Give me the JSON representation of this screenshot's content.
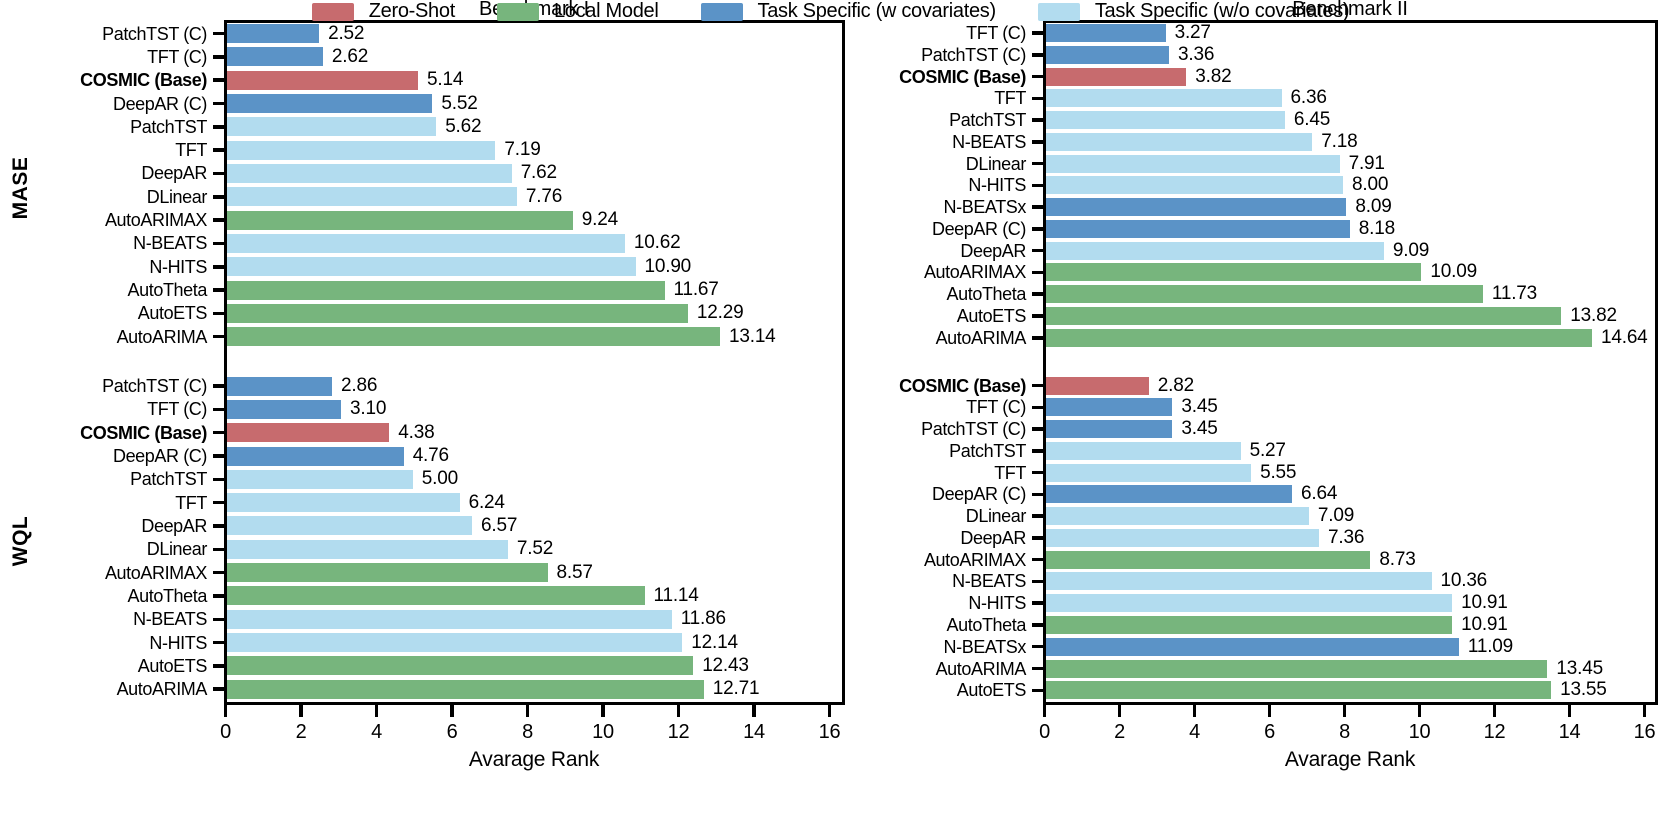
{
  "figure": {
    "xlabel": "Avarage Rank",
    "x_ticks": [
      0,
      2,
      4,
      6,
      8,
      10,
      12,
      14,
      16
    ],
    "row_labels": [
      "MASE",
      "WQL"
    ],
    "colors": {
      "zero_shot": "#C76B6E",
      "local_model": "#77B57D",
      "task_specific_cov": "#5B93C7",
      "task_specific_nocov": "#B2DCEF",
      "axis": "#000000"
    },
    "legend": [
      {
        "label": "Zero-Shot",
        "color_key": "zero_shot"
      },
      {
        "label": "Local Model",
        "color_key": "local_model"
      },
      {
        "label": "Task Specific (w covariates)",
        "color_key": "task_specific_cov"
      },
      {
        "label": "Task Specific (w/o covariates)",
        "color_key": "task_specific_nocov"
      }
    ]
  },
  "chart_data": [
    {
      "type": "bar",
      "orientation": "horizontal",
      "title": "Benchmark I",
      "xlabel": "Avarage Rank",
      "xlim": [
        0,
        16.45
      ],
      "value_format": "2dp",
      "groups": [
        {
          "metric": "MASE",
          "bars": [
            {
              "label": "PatchTST (C)",
              "value": 2.52,
              "category": "task_specific_cov",
              "bold": false
            },
            {
              "label": "TFT (C)",
              "value": 2.62,
              "category": "task_specific_cov",
              "bold": false
            },
            {
              "label": "COSMIC (Base)",
              "value": 5.14,
              "category": "zero_shot",
              "bold": true
            },
            {
              "label": "DeepAR (C)",
              "value": 5.52,
              "category": "task_specific_cov",
              "bold": false
            },
            {
              "label": "PatchTST",
              "value": 5.62,
              "category": "task_specific_nocov",
              "bold": false
            },
            {
              "label": "TFT",
              "value": 7.19,
              "category": "task_specific_nocov",
              "bold": false
            },
            {
              "label": "DeepAR",
              "value": 7.62,
              "category": "task_specific_nocov",
              "bold": false
            },
            {
              "label": "DLinear",
              "value": 7.76,
              "category": "task_specific_nocov",
              "bold": false
            },
            {
              "label": "AutoARIMAX",
              "value": 9.24,
              "category": "local_model",
              "bold": false
            },
            {
              "label": "N-BEATS",
              "value": 10.62,
              "category": "task_specific_nocov",
              "bold": false
            },
            {
              "label": "N-HITS",
              "value": 10.9,
              "category": "task_specific_nocov",
              "bold": false
            },
            {
              "label": "AutoTheta",
              "value": 11.67,
              "category": "local_model",
              "bold": false
            },
            {
              "label": "AutoETS",
              "value": 12.29,
              "category": "local_model",
              "bold": false
            },
            {
              "label": "AutoARIMA",
              "value": 13.14,
              "category": "local_model",
              "bold": false
            }
          ]
        },
        {
          "metric": "WQL",
          "bars": [
            {
              "label": "PatchTST (C)",
              "value": 2.86,
              "category": "task_specific_cov",
              "bold": false
            },
            {
              "label": "TFT (C)",
              "value": 3.1,
              "category": "task_specific_cov",
              "bold": false
            },
            {
              "label": "COSMIC (Base)",
              "value": 4.38,
              "category": "zero_shot",
              "bold": true
            },
            {
              "label": "DeepAR (C)",
              "value": 4.76,
              "category": "task_specific_cov",
              "bold": false
            },
            {
              "label": "PatchTST",
              "value": 5.0,
              "category": "task_specific_nocov",
              "bold": false
            },
            {
              "label": "TFT",
              "value": 6.24,
              "category": "task_specific_nocov",
              "bold": false
            },
            {
              "label": "DeepAR",
              "value": 6.57,
              "category": "task_specific_nocov",
              "bold": false
            },
            {
              "label": "DLinear",
              "value": 7.52,
              "category": "task_specific_nocov",
              "bold": false
            },
            {
              "label": "AutoARIMAX",
              "value": 8.57,
              "category": "local_model",
              "bold": false
            },
            {
              "label": "AutoTheta",
              "value": 11.14,
              "category": "local_model",
              "bold": false
            },
            {
              "label": "N-BEATS",
              "value": 11.86,
              "category": "task_specific_nocov",
              "bold": false
            },
            {
              "label": "N-HITS",
              "value": 12.14,
              "category": "task_specific_nocov",
              "bold": false
            },
            {
              "label": "AutoETS",
              "value": 12.43,
              "category": "local_model",
              "bold": false
            },
            {
              "label": "AutoARIMA",
              "value": 12.71,
              "category": "local_model",
              "bold": false
            }
          ]
        }
      ]
    },
    {
      "type": "bar",
      "orientation": "horizontal",
      "title": "Benchmark II",
      "xlabel": "Avarage Rank",
      "xlim": [
        0,
        16.45
      ],
      "value_format": "2dp",
      "groups": [
        {
          "metric": "MASE",
          "bars": [
            {
              "label": "TFT (C)",
              "value": 3.27,
              "category": "task_specific_cov",
              "bold": false
            },
            {
              "label": "PatchTST (C)",
              "value": 3.36,
              "category": "task_specific_cov",
              "bold": false
            },
            {
              "label": "COSMIC (Base)",
              "value": 3.82,
              "category": "zero_shot",
              "bold": true
            },
            {
              "label": "TFT",
              "value": 6.36,
              "category": "task_specific_nocov",
              "bold": false
            },
            {
              "label": "PatchTST",
              "value": 6.45,
              "category": "task_specific_nocov",
              "bold": false
            },
            {
              "label": "N-BEATS",
              "value": 7.18,
              "category": "task_specific_nocov",
              "bold": false
            },
            {
              "label": "DLinear",
              "value": 7.91,
              "category": "task_specific_nocov",
              "bold": false
            },
            {
              "label": "N-HITS",
              "value": 8.0,
              "category": "task_specific_nocov",
              "bold": false
            },
            {
              "label": "N-BEATSx",
              "value": 8.09,
              "category": "task_specific_cov",
              "bold": false
            },
            {
              "label": "DeepAR (C)",
              "value": 8.18,
              "category": "task_specific_cov",
              "bold": false
            },
            {
              "label": "DeepAR",
              "value": 9.09,
              "category": "task_specific_nocov",
              "bold": false
            },
            {
              "label": "AutoARIMAX",
              "value": 10.09,
              "category": "local_model",
              "bold": false
            },
            {
              "label": "AutoTheta",
              "value": 11.73,
              "category": "local_model",
              "bold": false
            },
            {
              "label": "AutoETS",
              "value": 13.82,
              "category": "local_model",
              "bold": false
            },
            {
              "label": "AutoARIMA",
              "value": 14.64,
              "category": "local_model",
              "bold": false
            }
          ]
        },
        {
          "metric": "WQL",
          "bars": [
            {
              "label": "COSMIC (Base)",
              "value": 2.82,
              "category": "zero_shot",
              "bold": true
            },
            {
              "label": "TFT (C)",
              "value": 3.45,
              "category": "task_specific_cov",
              "bold": false
            },
            {
              "label": "PatchTST (C)",
              "value": 3.45,
              "category": "task_specific_cov",
              "bold": false
            },
            {
              "label": "PatchTST",
              "value": 5.27,
              "category": "task_specific_nocov",
              "bold": false
            },
            {
              "label": "TFT",
              "value": 5.55,
              "category": "task_specific_nocov",
              "bold": false
            },
            {
              "label": "DeepAR (C)",
              "value": 6.64,
              "category": "task_specific_cov",
              "bold": false
            },
            {
              "label": "DLinear",
              "value": 7.09,
              "category": "task_specific_nocov",
              "bold": false
            },
            {
              "label": "DeepAR",
              "value": 7.36,
              "category": "task_specific_nocov",
              "bold": false
            },
            {
              "label": "AutoARIMAX",
              "value": 8.73,
              "category": "local_model",
              "bold": false
            },
            {
              "label": "N-BEATS",
              "value": 10.36,
              "category": "task_specific_nocov",
              "bold": false
            },
            {
              "label": "N-HITS",
              "value": 10.91,
              "category": "task_specific_nocov",
              "bold": false
            },
            {
              "label": "AutoTheta",
              "value": 10.91,
              "category": "local_model",
              "bold": false
            },
            {
              "label": "N-BEATSx",
              "value": 11.09,
              "category": "task_specific_cov",
              "bold": false
            },
            {
              "label": "AutoARIMA",
              "value": 13.45,
              "category": "local_model",
              "bold": false
            },
            {
              "label": "AutoETS",
              "value": 13.55,
              "category": "local_model",
              "bold": false
            }
          ]
        }
      ]
    }
  ]
}
